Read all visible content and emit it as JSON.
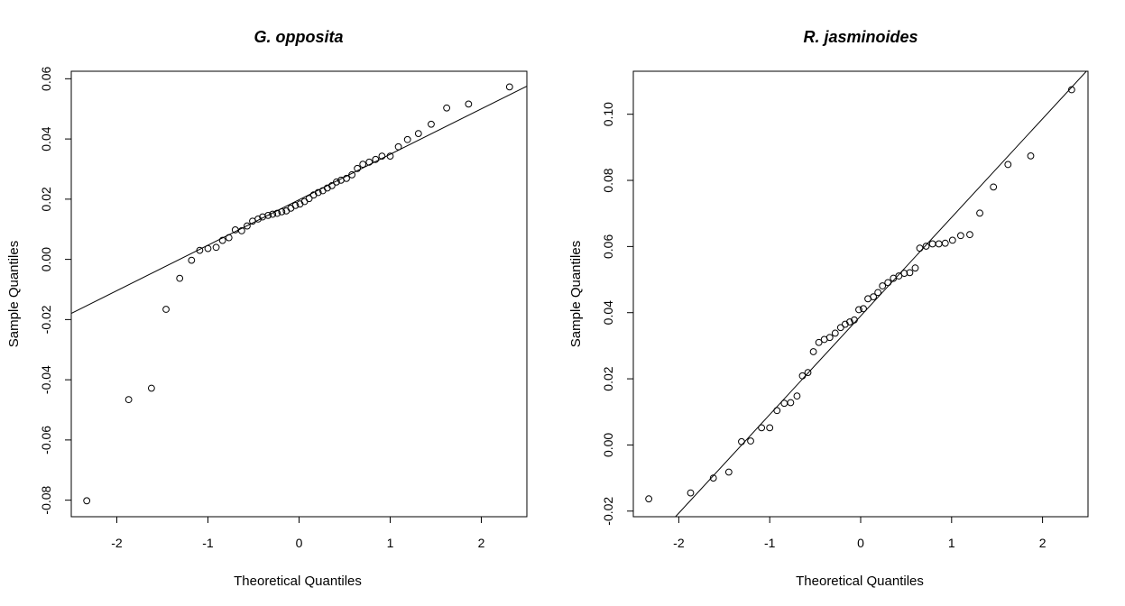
{
  "chart_data": [
    {
      "type": "scatter",
      "title": "G. opposita",
      "xlabel": "Theoretical Quantiles",
      "ylabel": "Sample Quantiles",
      "xlim": [
        -2.5,
        2.5
      ],
      "ylim": [
        -0.0855,
        0.0625
      ],
      "xticks": [
        -2,
        -1,
        0,
        1,
        2
      ],
      "xtick_labels": [
        "-2",
        "-1",
        "0",
        "1",
        "2"
      ],
      "yticks": [
        -0.08,
        -0.06,
        -0.04,
        -0.02,
        0.0,
        0.02,
        0.04,
        0.06
      ],
      "ytick_labels": [
        "-0.08",
        "-0.06",
        "-0.04",
        "-0.02",
        "0.00",
        "0.02",
        "0.04",
        "0.06"
      ],
      "grid": false,
      "legend": "none",
      "reference_line": {
        "slope": 0.0151,
        "intercept": 0.0198
      },
      "points": [
        [
          -2.33,
          -0.0802
        ],
        [
          -1.87,
          -0.0466
        ],
        [
          -1.62,
          -0.0428
        ],
        [
          -1.46,
          -0.0166
        ],
        [
          -1.31,
          -0.0063
        ],
        [
          -1.18,
          -0.0003
        ],
        [
          -1.09,
          0.003
        ],
        [
          -1.0,
          0.0036
        ],
        [
          -0.91,
          0.004
        ],
        [
          -0.84,
          0.0063
        ],
        [
          -0.77,
          0.0072
        ],
        [
          -0.7,
          0.0098
        ],
        [
          -0.63,
          0.0095
        ],
        [
          -0.57,
          0.0111
        ],
        [
          -0.51,
          0.0127
        ],
        [
          -0.45,
          0.0134
        ],
        [
          -0.4,
          0.0141
        ],
        [
          -0.34,
          0.0146
        ],
        [
          -0.29,
          0.015
        ],
        [
          -0.24,
          0.0153
        ],
        [
          -0.19,
          0.0158
        ],
        [
          -0.14,
          0.0161
        ],
        [
          -0.09,
          0.017
        ],
        [
          -0.04,
          0.0179
        ],
        [
          0.01,
          0.0184
        ],
        [
          0.06,
          0.0192
        ],
        [
          0.11,
          0.0202
        ],
        [
          0.16,
          0.0214
        ],
        [
          0.21,
          0.0222
        ],
        [
          0.26,
          0.0228
        ],
        [
          0.31,
          0.0237
        ],
        [
          0.36,
          0.0245
        ],
        [
          0.41,
          0.0257
        ],
        [
          0.46,
          0.0263
        ],
        [
          0.52,
          0.0269
        ],
        [
          0.58,
          0.0281
        ],
        [
          0.64,
          0.0302
        ],
        [
          0.7,
          0.0316
        ],
        [
          0.77,
          0.0323
        ],
        [
          0.84,
          0.0332
        ],
        [
          0.91,
          0.0343
        ],
        [
          1.0,
          0.0343
        ],
        [
          1.09,
          0.0374
        ],
        [
          1.19,
          0.0398
        ],
        [
          1.31,
          0.0418
        ],
        [
          1.45,
          0.0449
        ],
        [
          1.62,
          0.0503
        ],
        [
          1.86,
          0.0516
        ],
        [
          2.31,
          0.0573
        ]
      ]
    },
    {
      "type": "scatter",
      "title": "R. jasminoides",
      "xlabel": "Theoretical Quantiles",
      "ylabel": "Sample Quantiles",
      "xlim": [
        -2.5,
        2.5
      ],
      "ylim": [
        -0.0217,
        0.113
      ],
      "xticks": [
        -2,
        -1,
        0,
        1,
        2
      ],
      "xtick_labels": [
        "-2",
        "-1",
        "0",
        "1",
        "2"
      ],
      "yticks": [
        -0.02,
        0.0,
        0.02,
        0.04,
        0.06,
        0.08,
        0.1
      ],
      "ytick_labels": [
        "-0.02",
        "0.00",
        "0.02",
        "0.04",
        "0.06",
        "0.08",
        "0.10"
      ],
      "grid": false,
      "legend": "none",
      "reference_line": {
        "slope": 0.02981,
        "intercept": 0.039
      },
      "points": [
        [
          -2.33,
          -0.0163
        ],
        [
          -1.87,
          -0.0145
        ],
        [
          -1.62,
          -0.01
        ],
        [
          -1.45,
          -0.0082
        ],
        [
          -1.31,
          0.001
        ],
        [
          -1.21,
          0.0012
        ],
        [
          -1.09,
          0.0052
        ],
        [
          -1.0,
          0.0052
        ],
        [
          -0.92,
          0.0104
        ],
        [
          -0.84,
          0.0126
        ],
        [
          -0.77,
          0.0128
        ],
        [
          -0.7,
          0.0148
        ],
        [
          -0.64,
          0.0209
        ],
        [
          -0.58,
          0.0219
        ],
        [
          -0.52,
          0.0282
        ],
        [
          -0.46,
          0.031
        ],
        [
          -0.4,
          0.0319
        ],
        [
          -0.34,
          0.0325
        ],
        [
          -0.28,
          0.0338
        ],
        [
          -0.22,
          0.0355
        ],
        [
          -0.17,
          0.0365
        ],
        [
          -0.12,
          0.0372
        ],
        [
          -0.07,
          0.0378
        ],
        [
          -0.02,
          0.0409
        ],
        [
          0.03,
          0.0412
        ],
        [
          0.08,
          0.0442
        ],
        [
          0.14,
          0.0448
        ],
        [
          0.19,
          0.0461
        ],
        [
          0.24,
          0.0481
        ],
        [
          0.3,
          0.0491
        ],
        [
          0.36,
          0.0504
        ],
        [
          0.42,
          0.0511
        ],
        [
          0.48,
          0.0519
        ],
        [
          0.54,
          0.0521
        ],
        [
          0.6,
          0.0535
        ],
        [
          0.65,
          0.0595
        ],
        [
          0.72,
          0.0601
        ],
        [
          0.79,
          0.0608
        ],
        [
          0.86,
          0.0608
        ],
        [
          0.93,
          0.061
        ],
        [
          1.01,
          0.0619
        ],
        [
          1.1,
          0.0633
        ],
        [
          1.2,
          0.0636
        ],
        [
          1.31,
          0.0701
        ],
        [
          1.46,
          0.078
        ],
        [
          1.62,
          0.0848
        ],
        [
          1.87,
          0.0874
        ],
        [
          2.32,
          0.1074
        ]
      ]
    }
  ]
}
